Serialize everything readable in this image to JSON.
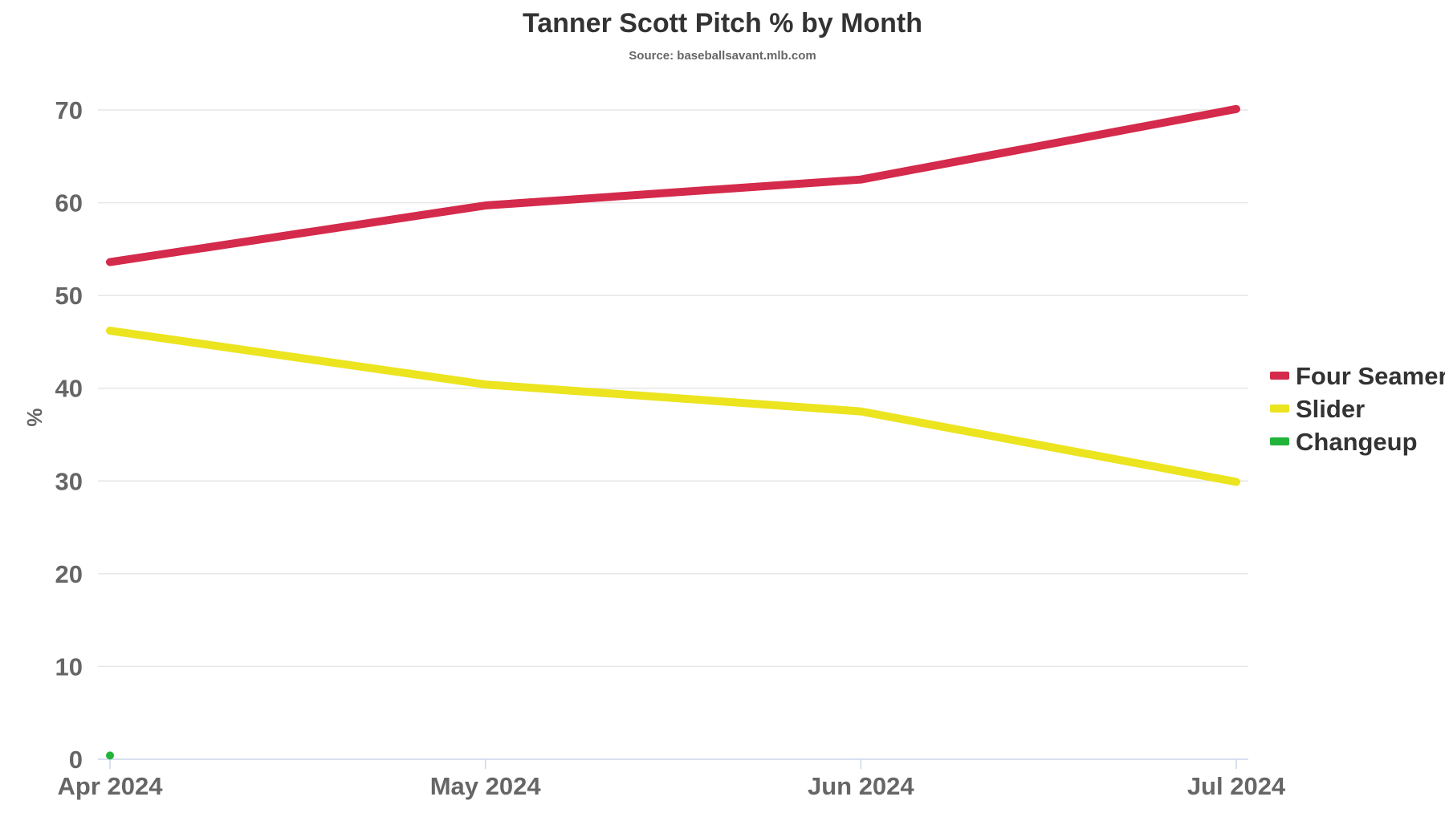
{
  "chart_data": {
    "type": "line",
    "title": "Tanner Scott Pitch % by Month",
    "subtitle": "Source: baseballsavant.mlb.com",
    "ylabel": "%",
    "ylim": [
      0,
      70
    ],
    "yticks": [
      0,
      10,
      20,
      30,
      40,
      50,
      60,
      70
    ],
    "categories": [
      "Apr 2024",
      "May 2024",
      "Jun 2024",
      "Jul 2024"
    ],
    "grid": true,
    "legend_position": "right",
    "series": [
      {
        "name": "Four Seamer",
        "color": "#d42a4b",
        "values": [
          53.6,
          59.7,
          62.5,
          70.1
        ]
      },
      {
        "name": "Slider",
        "color": "#ebe41f",
        "values": [
          46.2,
          40.4,
          37.5,
          29.9
        ]
      },
      {
        "name": "Changeup",
        "color": "#22b43a",
        "values": [
          0.4,
          null,
          null,
          null
        ]
      }
    ]
  }
}
